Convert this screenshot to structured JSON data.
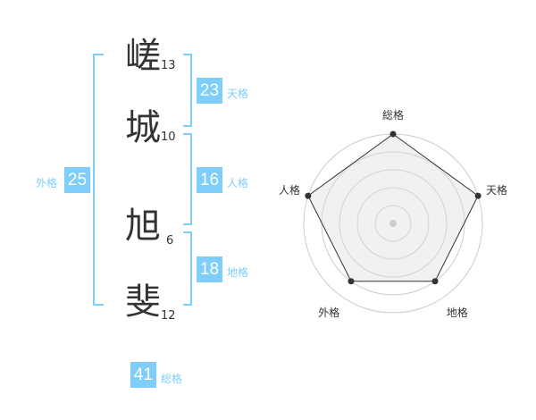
{
  "name": {
    "chars": [
      {
        "char": "嵯",
        "strokes": "13"
      },
      {
        "char": "城",
        "strokes": "10"
      },
      {
        "char": "旭",
        "strokes": "6"
      },
      {
        "char": "斐",
        "strokes": "12"
      }
    ]
  },
  "kaku": {
    "tenkaku": {
      "value": "23",
      "label": "天格"
    },
    "jinkaku": {
      "value": "16",
      "label": "人格"
    },
    "chikaku": {
      "value": "18",
      "label": "地格"
    },
    "gaikaku": {
      "value": "25",
      "label": "外格"
    },
    "soukaku": {
      "value": "41",
      "label": "総格"
    }
  },
  "colors": {
    "accent": "#7fcdfb",
    "text": "#333333"
  },
  "chart_data": {
    "type": "radar",
    "axes": [
      "総格",
      "天格",
      "地格",
      "外格",
      "人格"
    ],
    "values": [
      5,
      5,
      4,
      4,
      5
    ],
    "range": [
      0,
      5
    ],
    "grid": "circles"
  }
}
